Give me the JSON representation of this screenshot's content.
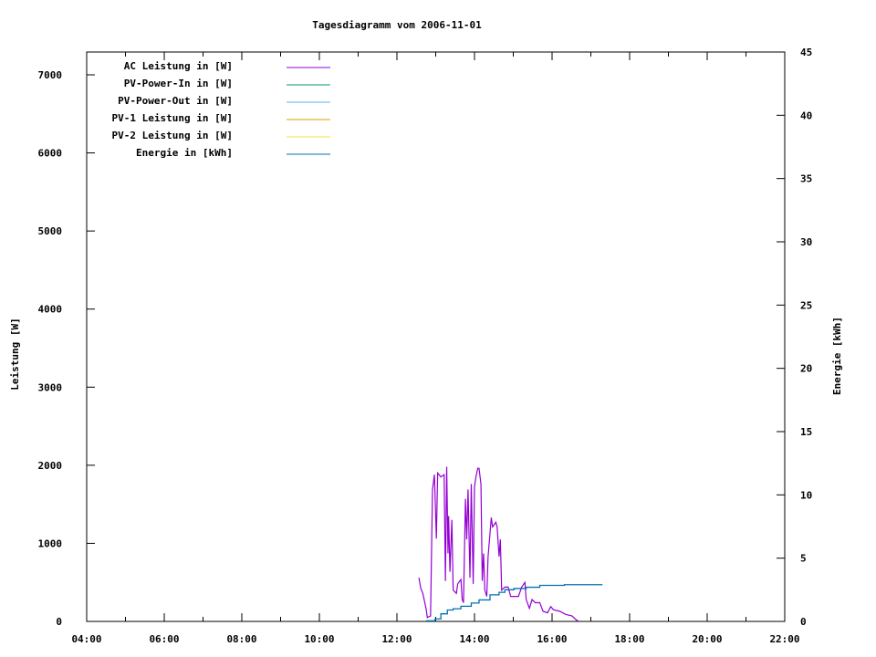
{
  "chart_data": {
    "type": "line",
    "title": "Tagesdiagramm vom 2006-11-01",
    "xlabel": "",
    "ylabel": "Leistung [W]",
    "y2label": "Energie [kWh]",
    "xlim": [
      "04:00",
      "22:00"
    ],
    "ylim": [
      0,
      7300
    ],
    "y2lim": [
      0,
      45
    ],
    "x_ticks": [
      "04:00",
      "06:00",
      "08:00",
      "10:00",
      "12:00",
      "14:00",
      "16:00",
      "18:00",
      "20:00",
      "22:00"
    ],
    "y_ticks": [
      0,
      1000,
      2000,
      3000,
      4000,
      5000,
      6000,
      7000
    ],
    "y2_ticks": [
      0,
      5,
      10,
      15,
      20,
      25,
      30,
      35,
      40,
      45
    ],
    "grid": false,
    "legend_position": "top-left",
    "series": [
      {
        "name": "AC Leistung in [W]",
        "color": "#9400d3",
        "axis": "y",
        "x": [
          "12:34",
          "12:37",
          "12:40",
          "12:45",
          "12:47",
          "12:52",
          "12:55",
          "12:58",
          "13:01",
          "13:03",
          "13:08",
          "13:13",
          "13:15",
          "13:17",
          "13:19",
          "13:20",
          "13:22",
          "13:25",
          "13:27",
          "13:32",
          "13:34",
          "13:39",
          "13:41",
          "13:43",
          "13:46",
          "13:48",
          "13:50",
          "13:53",
          "13:55",
          "13:58",
          "14:00",
          "14:02",
          "14:05",
          "14:07",
          "14:10",
          "14:12",
          "14:14",
          "14:16",
          "14:19",
          "14:21",
          "14:24",
          "14:26",
          "14:28",
          "14:33",
          "14:35",
          "14:38",
          "14:40",
          "14:42",
          "14:47",
          "14:52",
          "14:56",
          "15:01",
          "15:08",
          "15:13",
          "15:18",
          "15:20",
          "15:25",
          "15:29",
          "15:34",
          "15:41",
          "15:46",
          "15:53",
          "15:58",
          "16:02",
          "16:12",
          "16:21",
          "16:31",
          "16:38",
          "16:42"
        ],
        "values": [
          560,
          420,
          360,
          167,
          50,
          70,
          1685,
          1880,
          1060,
          1900,
          1850,
          1880,
          517,
          1980,
          870,
          1350,
          635,
          1300,
          400,
          360,
          480,
          537,
          280,
          240,
          1570,
          1050,
          1690,
          560,
          1760,
          480,
          1725,
          1840,
          1960,
          1960,
          1760,
          520,
          870,
          400,
          320,
          830,
          1130,
          1330,
          1210,
          1270,
          1210,
          830,
          1050,
          400,
          440,
          440,
          320,
          320,
          320,
          440,
          500,
          280,
          167,
          280,
          240,
          240,
          130,
          110,
          190,
          150,
          130,
          90,
          70,
          15,
          0
        ]
      },
      {
        "name": "PV-Power-In in [W]",
        "color": "#009e73",
        "axis": "y",
        "x": [],
        "values": []
      },
      {
        "name": "PV-Power-Out in [W]",
        "color": "#56b4e9",
        "axis": "y",
        "x": [],
        "values": []
      },
      {
        "name": "PV-1 Leistung in [W]",
        "color": "#e69f00",
        "axis": "y",
        "x": [],
        "values": []
      },
      {
        "name": "PV-2 Leistung in [W]",
        "color": "#f0e442",
        "axis": "y",
        "x": [],
        "values": []
      },
      {
        "name": "Energie in [kWh]",
        "color": "#0072b2",
        "axis": "y2",
        "x": [
          "12:45",
          "12:59",
          "13:08",
          "13:18",
          "13:27",
          "13:39",
          "13:55",
          "14:07",
          "14:24",
          "14:38",
          "14:47",
          "15:01",
          "15:20",
          "15:41",
          "16:19",
          "17:18"
        ],
        "values": [
          0.05,
          0.2,
          0.6,
          0.9,
          1.0,
          1.2,
          1.45,
          1.7,
          2.1,
          2.3,
          2.5,
          2.6,
          2.7,
          2.85,
          2.9,
          2.9
        ]
      }
    ]
  }
}
